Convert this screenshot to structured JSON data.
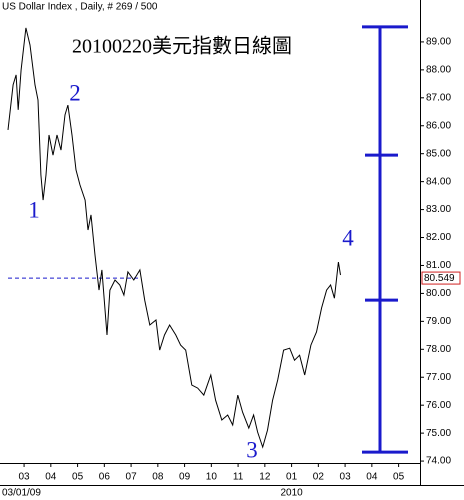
{
  "chart_data": {
    "type": "line",
    "title": "US Dollar Index , Daily, # 269 / 500",
    "subtitle": "20100220美元指數日線圖",
    "x": [
      2.4,
      2.59,
      2.7,
      2.78,
      2.89,
      3.07,
      3.22,
      3.41,
      3.52,
      3.63,
      3.71,
      3.82,
      3.93,
      4.08,
      4.23,
      4.38,
      4.53,
      4.64,
      4.79,
      4.94,
      5.09,
      5.28,
      5.39,
      5.5,
      5.65,
      5.8,
      5.91,
      6.1,
      6.21,
      6.4,
      6.58,
      6.73,
      6.88,
      7.1,
      7.33,
      7.51,
      7.7,
      7.93,
      8.07,
      8.25,
      8.44,
      8.67,
      8.85,
      9.04,
      9.27,
      9.49,
      9.72,
      9.98,
      10.16,
      10.39,
      10.61,
      10.8,
      10.99,
      11.17,
      11.4,
      11.58,
      11.73,
      11.92,
      12.1,
      12.29,
      12.48,
      12.7,
      12.93,
      13.11,
      13.3,
      13.49,
      13.72,
      13.93,
      14.12,
      14.31,
      14.46,
      14.6,
      14.75,
      14.83
    ],
    "series": [
      {
        "name": "US Dollar Index",
        "color": "#000000",
        "values": [
          85.85,
          87.46,
          87.82,
          86.57,
          88.0,
          89.5,
          88.89,
          87.46,
          86.92,
          84.24,
          83.34,
          84.24,
          85.67,
          84.95,
          85.67,
          85.13,
          86.39,
          86.74,
          85.67,
          84.42,
          83.88,
          83.34,
          82.27,
          82.81,
          81.37,
          80.12,
          80.84,
          78.51,
          80.12,
          80.48,
          80.3,
          79.94,
          80.77,
          80.48,
          80.84,
          79.76,
          78.87,
          79.05,
          77.97,
          78.51,
          78.87,
          78.51,
          78.15,
          77.97,
          76.72,
          76.61,
          76.36,
          77.08,
          76.18,
          75.47,
          75.65,
          75.29,
          76.36,
          75.75,
          75.18,
          75.65,
          75.04,
          74.5,
          75.11,
          76.18,
          76.9,
          77.97,
          78.04,
          77.61,
          77.79,
          77.08,
          78.15,
          78.62,
          79.48,
          80.12,
          80.3,
          79.83,
          81.12,
          80.66
        ]
      }
    ],
    "xlim": [
      2.1,
      17.8
    ],
    "xticks": [
      {
        "value": 3,
        "label": "03"
      },
      {
        "value": 4,
        "label": "04"
      },
      {
        "value": 5,
        "label": "05"
      },
      {
        "value": 6,
        "label": "06"
      },
      {
        "value": 7,
        "label": "07"
      },
      {
        "value": 8,
        "label": "08"
      },
      {
        "value": 9,
        "label": "09"
      },
      10,
      11,
      12,
      {
        "value": 13,
        "label": "01"
      },
      {
        "value": 14,
        "label": "02"
      },
      {
        "value": 15,
        "label": "03"
      },
      {
        "value": 16,
        "label": "04"
      },
      {
        "value": 17,
        "label": "05"
      }
    ],
    "x_sublabels": [
      "03/01/09",
      "2010"
    ],
    "ylim": [
      73.43,
      90.5
    ],
    "yticks": [
      {
        "value": 74,
        "label": "74.00"
      },
      {
        "value": 75,
        "label": "75.00"
      },
      {
        "value": 76,
        "label": "76.00"
      },
      {
        "value": 77,
        "label": "77.00"
      },
      {
        "value": 78,
        "label": "78.00"
      },
      {
        "value": 79,
        "label": "79.00"
      },
      {
        "value": 80,
        "label": "80.00"
      },
      {
        "value": 81,
        "label": "81.00"
      },
      {
        "value": 82,
        "label": "82.00"
      },
      {
        "value": 83,
        "label": "83.00"
      },
      {
        "value": 84,
        "label": "84.00"
      },
      {
        "value": 85,
        "label": "85.00"
      },
      {
        "value": 86,
        "label": "86.00"
      },
      {
        "value": 87,
        "label": "87.00"
      },
      {
        "value": 88,
        "label": "88.00"
      },
      {
        "value": 89,
        "label": "89.00"
      }
    ],
    "last_price": 80.549,
    "annotations": [
      "1",
      "2",
      "3",
      "4"
    ],
    "measure_levels": [
      89.54,
      84.95,
      79.76,
      74.32
    ],
    "annotation_color": "#1a1acc",
    "price_box_color": "#d02020"
  }
}
